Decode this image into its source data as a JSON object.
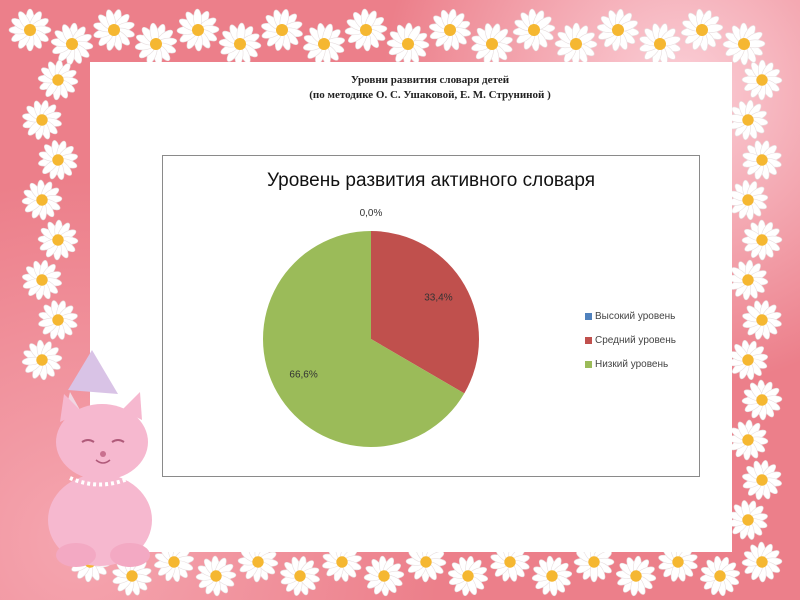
{
  "slide": {
    "title_line1": "Уровни развития словаря детей",
    "title_line2": "(по методике О. С. Ушаковой, Е. М. Струниной )"
  },
  "chart_data": {
    "type": "pie",
    "title": "Уровень развития активного словаря",
    "categories": [
      "Высокий уровень",
      "Средний уровень",
      "Низкий уровень"
    ],
    "values": [
      0.0,
      33.4,
      66.6
    ],
    "data_labels": [
      "0,0%",
      "33,4%",
      "66,6%"
    ],
    "colors": [
      "#4f81bd",
      "#c0504d",
      "#9bbb59"
    ],
    "legend_position": "right"
  },
  "decorations": {
    "frame": "daisy-flower-border",
    "character": "pink-kitten-with-party-hat",
    "background_color": "#ec7f8a",
    "flower_petal_color": "#ffffff",
    "flower_center_color": "#f5b731"
  }
}
